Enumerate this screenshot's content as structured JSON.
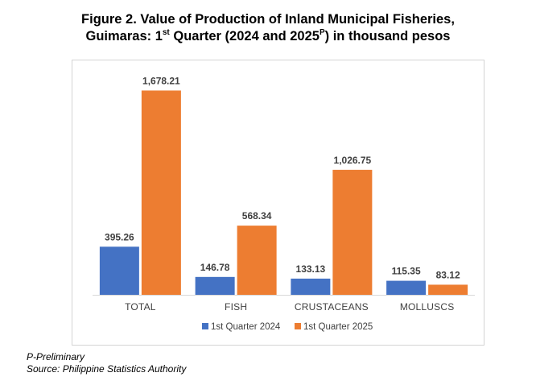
{
  "title": {
    "line1": "Figure 2. Value of Production of Inland Municipal Fisheries,",
    "line2_a": "Guimaras: 1",
    "line2_sup1": "st",
    "line2_b": " Quarter (2024 and 2025",
    "line2_sup2": "P",
    "line2_c": ") in thousand pesos"
  },
  "chart_data": {
    "type": "bar",
    "categories": [
      "TOTAL",
      "FISH",
      "CRUSTACEANS",
      "MOLLUSCS"
    ],
    "series": [
      {
        "name": "1st Quarter 2024",
        "color": "#4472c4",
        "values": [
          395.26,
          146.78,
          133.13,
          115.35
        ],
        "labels": [
          "395.26",
          "146.78",
          "133.13",
          "115.35"
        ]
      },
      {
        "name": "1st Quarter 2025",
        "color": "#ed7d31",
        "values": [
          1678.21,
          568.34,
          1026.75,
          83.12
        ],
        "labels": [
          "1,678.21",
          "568.34",
          "1,026.75",
          "83.12"
        ]
      }
    ],
    "ylim": [
      0,
      1800
    ],
    "legend": "bottom",
    "grid": false
  },
  "footnotes": {
    "note": "P-Preliminary",
    "source": "Source: Philippine Statistics Authority"
  }
}
